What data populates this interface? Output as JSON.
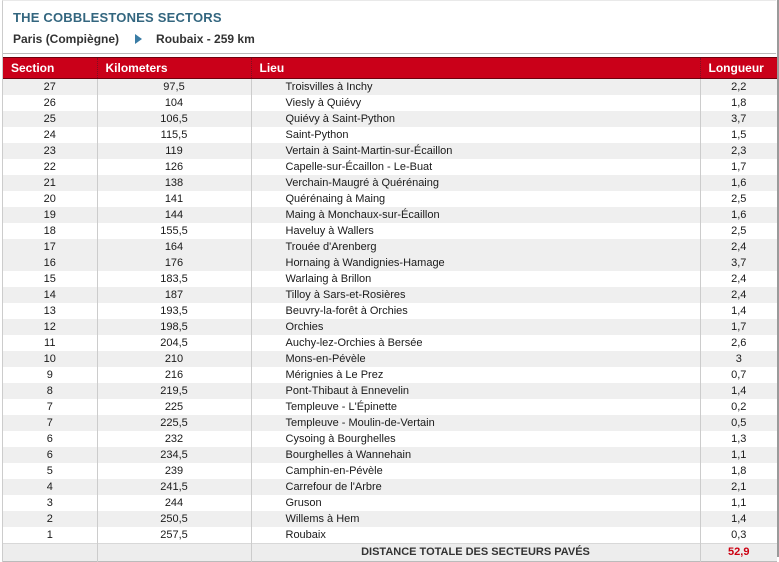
{
  "page": {
    "title": "THE COBBLESTONES SECTORS",
    "route_start": "Paris (Compiègne)",
    "route_end": "Roubaix - 259 km"
  },
  "table": {
    "columns": [
      "Section",
      "Kilometers",
      "Lieu",
      "Longueur"
    ],
    "rows": [
      {
        "section": "27",
        "km": "97,5",
        "lieu": "Troisvilles à Inchy",
        "longueur": "2,2"
      },
      {
        "section": "26",
        "km": "104",
        "lieu": "Viesly à Quiévy",
        "longueur": "1,8"
      },
      {
        "section": "25",
        "km": "106,5",
        "lieu": "Quiévy à Saint-Python",
        "longueur": "3,7"
      },
      {
        "section": "24",
        "km": "115,5",
        "lieu": "Saint-Python",
        "longueur": "1,5"
      },
      {
        "section": "23",
        "km": "119",
        "lieu": "Vertain à Saint-Martin-sur-Écaillon",
        "longueur": "2,3"
      },
      {
        "section": "22",
        "km": "126",
        "lieu": "Capelle-sur-Écaillon - Le-Buat",
        "longueur": "1,7"
      },
      {
        "section": "21",
        "km": "138",
        "lieu": "Verchain-Maugré à Quérénaing",
        "longueur": "1,6"
      },
      {
        "section": "20",
        "km": "141",
        "lieu": "Quérénaing à Maing",
        "longueur": "2,5"
      },
      {
        "section": "19",
        "km": "144",
        "lieu": "Maing à Monchaux-sur-Écaillon",
        "longueur": "1,6"
      },
      {
        "section": "18",
        "km": "155,5",
        "lieu": "Haveluy à Wallers",
        "longueur": "2,5"
      },
      {
        "section": "17",
        "km": "164",
        "lieu": "Trouée d'Arenberg",
        "longueur": "2,4"
      },
      {
        "section": "16",
        "km": "176",
        "lieu": "Hornaing à Wandignies-Hamage",
        "longueur": "3,7"
      },
      {
        "section": "15",
        "km": "183,5",
        "lieu": "Warlaing à Brillon",
        "longueur": "2,4"
      },
      {
        "section": "14",
        "km": "187",
        "lieu": "Tilloy à Sars-et-Rosières",
        "longueur": "2,4"
      },
      {
        "section": "13",
        "km": "193,5",
        "lieu": "Beuvry-la-forêt à Orchies",
        "longueur": "1,4"
      },
      {
        "section": "12",
        "km": "198,5",
        "lieu": "Orchies",
        "longueur": "1,7"
      },
      {
        "section": "11",
        "km": "204,5",
        "lieu": "Auchy-lez-Orchies à Bersée",
        "longueur": "2,6"
      },
      {
        "section": "10",
        "km": "210",
        "lieu": "Mons-en-Pévèle",
        "longueur": "3"
      },
      {
        "section": "9",
        "km": "216",
        "lieu": "Mérignies à Le Prez",
        "longueur": "0,7"
      },
      {
        "section": "8",
        "km": "219,5",
        "lieu": "Pont-Thibaut à Ennevelin",
        "longueur": "1,4"
      },
      {
        "section": "7",
        "km": "225",
        "lieu": "Templeuve - L'Épinette",
        "longueur": "0,2"
      },
      {
        "section": "7",
        "km": "225,5",
        "lieu": "Templeuve - Moulin-de-Vertain",
        "longueur": "0,5"
      },
      {
        "section": "6",
        "km": "232",
        "lieu": "Cysoing à Bourghelles",
        "longueur": "1,3"
      },
      {
        "section": "6",
        "km": "234,5",
        "lieu": "Bourghelles à Wannehain",
        "longueur": "1,1"
      },
      {
        "section": "5",
        "km": "239",
        "lieu": "Camphin-en-Pévèle",
        "longueur": "1,8"
      },
      {
        "section": "4",
        "km": "241,5",
        "lieu": "Carrefour de l'Arbre",
        "longueur": "2,1"
      },
      {
        "section": "3",
        "km": "244",
        "lieu": "Gruson",
        "longueur": "1,1"
      },
      {
        "section": "2",
        "km": "250,5",
        "lieu": "Willems à Hem",
        "longueur": "1,4"
      },
      {
        "section": "1",
        "km": "257,5",
        "lieu": "Roubaix",
        "longueur": "0,3"
      }
    ],
    "footer": {
      "label": "DISTANCE TOTALE DES SECTEURS PAVÉS",
      "total": "52,9"
    }
  },
  "colors": {
    "header_bg": "#CA0019",
    "title_blue": "#33667F",
    "arrow_blue": "#3A7CA5",
    "total_red": "#CC0011",
    "row_alt": "#EFEFEF"
  }
}
